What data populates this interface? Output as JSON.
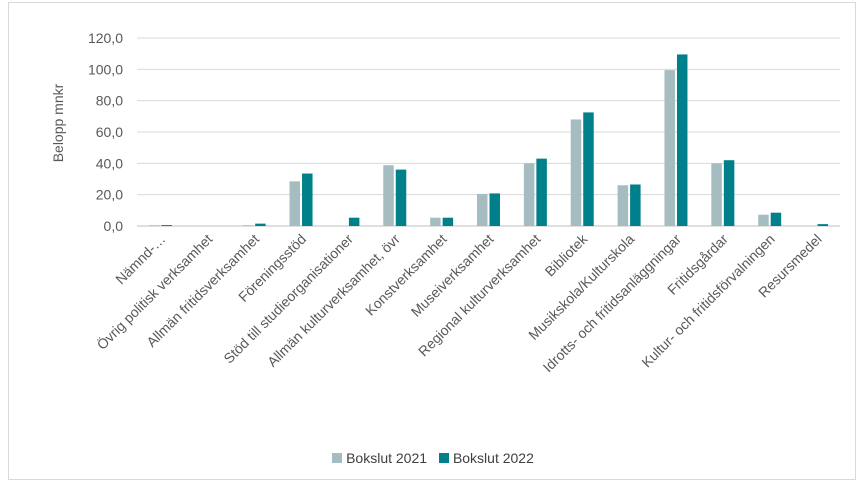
{
  "chart_data": {
    "type": "bar",
    "title": "",
    "ylabel": "Belopp mnkr",
    "xlabel": "",
    "ylim": [
      0,
      120
    ],
    "yticks": [
      0,
      20,
      40,
      60,
      80,
      100,
      120
    ],
    "ytick_labels": [
      "0,0",
      "20,0",
      "40,0",
      "60,0",
      "80,0",
      "100,0",
      "120,0"
    ],
    "grid": true,
    "legend_position": "bottom",
    "categories": [
      "Nämnd-…",
      "Övrig politisk verksamhet",
      "Allmän fritidsverksamhet",
      "Föreningsstöd",
      "Stöd till studieorganisationer",
      "Allmän kulturverksamhet, övr",
      "Konstverksamhet",
      "Museiverksamhet",
      "Regional kulturverksamhet",
      "Bibliotek",
      "Musikskola/Kulturskola",
      "Idrotts- och fritidsanläggningar",
      "Fritidsgårdar",
      "Kultur- och fritidsförvalningen",
      "Resursmedel"
    ],
    "series": [
      {
        "name": "Bokslut 2021",
        "color": "#a5bdc0",
        "values": [
          0.5,
          0,
          0.5,
          28.5,
          0,
          38.8,
          5.3,
          20.5,
          40.0,
          68.0,
          26.0,
          99.5,
          40.0,
          7.2,
          0
        ]
      },
      {
        "name": "Bokslut 2022",
        "color": "#00808a",
        "values": [
          0.6,
          0,
          1.5,
          33.5,
          5.3,
          36.0,
          5.3,
          20.8,
          43.0,
          72.5,
          26.5,
          109.5,
          42.0,
          8.5,
          1.2
        ]
      }
    ]
  }
}
